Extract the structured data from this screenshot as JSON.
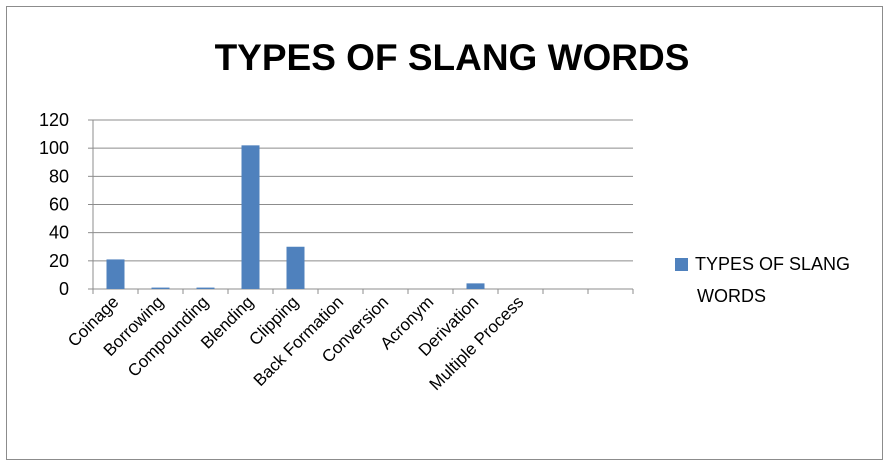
{
  "chart_data": {
    "type": "bar",
    "title": "TYPES OF SLANG WORDS",
    "xlabel": "",
    "ylabel": "",
    "categories": [
      "Coinage",
      "Borrowing",
      "Compounding",
      "Blending",
      "Clipping",
      "Back Formation",
      "Conversion",
      "Acronym",
      "Derivation",
      "Multiple Process",
      "",
      ""
    ],
    "series": [
      {
        "name": "TYPES OF SLANG WORDS",
        "values": [
          21,
          1,
          1,
          102,
          30,
          0,
          0,
          0,
          4,
          0,
          0,
          0
        ],
        "color": "#4f81bd"
      }
    ],
    "ylim": [
      0,
      120
    ],
    "yticks": [
      0,
      20,
      40,
      60,
      80,
      100,
      120
    ],
    "grid": true,
    "legend_position": "right",
    "legend_label_lines": [
      "TYPES OF SLANG",
      "WORDS"
    ]
  }
}
